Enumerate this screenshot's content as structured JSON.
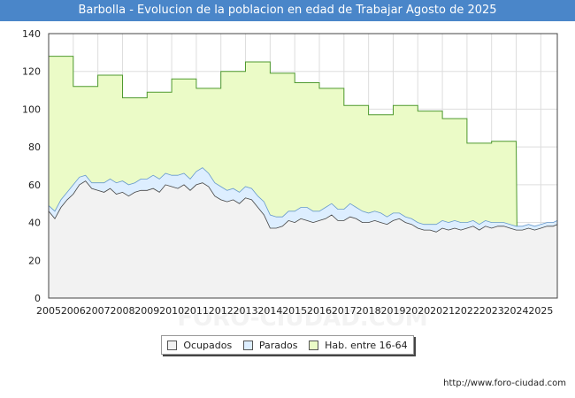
{
  "chart_data": {
    "type": "area",
    "title": "Barbolla - Evolucion de la poblacion en edad de Trabajar Agosto de 2025",
    "xlabel": "",
    "ylabel": "",
    "xlim": [
      2005,
      2025.67
    ],
    "ylim": [
      0,
      140
    ],
    "yticks": [
      0,
      20,
      40,
      60,
      80,
      100,
      120,
      140
    ],
    "xticks": [
      "2005",
      "2006",
      "2007",
      "2008",
      "2009",
      "2010",
      "2011",
      "2012",
      "2013",
      "2014",
      "2015",
      "2016",
      "2017",
      "2018",
      "2019",
      "2020",
      "2021",
      "2022",
      "2023",
      "2024",
      "2025"
    ],
    "grid": true,
    "legend_position": "bottom-center",
    "watermark": "FORO-CIUDAD.COM",
    "source": "http://www.foro-ciudad.com",
    "colors": {
      "ocupados_fill": "#f2f2f2",
      "ocupados_line": "#444444",
      "parados_fill": "#ddeeff",
      "parados_line": "#6699cc",
      "hab_fill": "#ebfbc7",
      "hab_line": "#4f9a2f",
      "title_bar": "#4a86c9"
    },
    "series": [
      {
        "name": "Hab. entre 16-64",
        "x": [
          2005,
          2006,
          2007,
          2008,
          2009,
          2010,
          2011,
          2012,
          2013,
          2014,
          2015,
          2016,
          2017,
          2018,
          2019,
          2020,
          2021,
          2022,
          2023,
          2024
        ],
        "values": [
          128,
          112,
          118,
          106,
          109,
          116,
          111,
          120,
          125,
          119,
          114,
          111,
          102,
          97,
          102,
          99,
          95,
          82,
          83,
          null
        ]
      },
      {
        "name": "Ocupados",
        "x": [
          2005.0,
          2005.25,
          2005.5,
          2005.75,
          2006.0,
          2006.25,
          2006.5,
          2006.75,
          2007.0,
          2007.25,
          2007.5,
          2007.75,
          2008.0,
          2008.25,
          2008.5,
          2008.75,
          2009.0,
          2009.25,
          2009.5,
          2009.75,
          2010.0,
          2010.25,
          2010.5,
          2010.75,
          2011.0,
          2011.25,
          2011.5,
          2011.75,
          2012.0,
          2012.25,
          2012.5,
          2012.75,
          2013.0,
          2013.25,
          2013.5,
          2013.75,
          2014.0,
          2014.25,
          2014.5,
          2014.75,
          2015.0,
          2015.25,
          2015.5,
          2015.75,
          2016.0,
          2016.25,
          2016.5,
          2016.75,
          2017.0,
          2017.25,
          2017.5,
          2017.75,
          2018.0,
          2018.25,
          2018.5,
          2018.75,
          2019.0,
          2019.25,
          2019.5,
          2019.75,
          2020.0,
          2020.25,
          2020.5,
          2020.75,
          2021.0,
          2021.25,
          2021.5,
          2021.75,
          2022.0,
          2022.25,
          2022.5,
          2022.75,
          2023.0,
          2023.25,
          2023.5,
          2023.75,
          2024.0,
          2024.25,
          2024.5,
          2024.75,
          2025.0,
          2025.25,
          2025.5,
          2025.67
        ],
        "values": [
          46,
          42,
          48,
          52,
          55,
          60,
          62,
          58,
          57,
          56,
          58,
          55,
          56,
          54,
          56,
          57,
          57,
          58,
          56,
          60,
          59,
          58,
          60,
          57,
          60,
          61,
          59,
          54,
          52,
          51,
          52,
          50,
          53,
          52,
          48,
          44,
          37,
          37,
          38,
          41,
          40,
          42,
          41,
          40,
          41,
          42,
          44,
          41,
          41,
          43,
          42,
          40,
          40,
          41,
          40,
          39,
          41,
          42,
          40,
          39,
          37,
          36,
          36,
          35,
          37,
          36,
          37,
          36,
          37,
          38,
          36,
          38,
          37,
          38,
          38,
          37,
          36,
          36,
          37,
          36,
          37,
          38,
          38,
          39
        ]
      },
      {
        "name": "Parados",
        "x": [
          2005.0,
          2005.25,
          2005.5,
          2005.75,
          2006.0,
          2006.25,
          2006.5,
          2006.75,
          2007.0,
          2007.25,
          2007.5,
          2007.75,
          2008.0,
          2008.25,
          2008.5,
          2008.75,
          2009.0,
          2009.25,
          2009.5,
          2009.75,
          2010.0,
          2010.25,
          2010.5,
          2010.75,
          2011.0,
          2011.25,
          2011.5,
          2011.75,
          2012.0,
          2012.25,
          2012.5,
          2012.75,
          2013.0,
          2013.25,
          2013.5,
          2013.75,
          2014.0,
          2014.25,
          2014.5,
          2014.75,
          2015.0,
          2015.25,
          2015.5,
          2015.75,
          2016.0,
          2016.25,
          2016.5,
          2016.75,
          2017.0,
          2017.25,
          2017.5,
          2017.75,
          2018.0,
          2018.25,
          2018.5,
          2018.75,
          2019.0,
          2019.25,
          2019.5,
          2019.75,
          2020.0,
          2020.25,
          2020.5,
          2020.75,
          2021.0,
          2021.25,
          2021.5,
          2021.75,
          2022.0,
          2022.25,
          2022.5,
          2022.75,
          2023.0,
          2023.25,
          2023.5,
          2023.75,
          2024.0,
          2024.25,
          2024.5,
          2024.75,
          2025.0,
          2025.25,
          2025.5,
          2025.67
        ],
        "values": [
          3,
          4,
          4,
          4,
          5,
          4,
          3,
          3,
          4,
          5,
          5,
          6,
          6,
          6,
          5,
          6,
          6,
          7,
          7,
          6,
          6,
          7,
          6,
          6,
          7,
          8,
          7,
          7,
          7,
          6,
          6,
          6,
          6,
          6,
          6,
          7,
          7,
          6,
          5,
          5,
          6,
          6,
          7,
          6,
          5,
          6,
          6,
          6,
          6,
          7,
          6,
          6,
          5,
          5,
          5,
          4,
          4,
          3,
          3,
          3,
          3,
          3,
          3,
          4,
          4,
          4,
          4,
          4,
          3,
          3,
          3,
          3,
          3,
          2,
          2,
          2,
          2,
          2,
          2,
          2,
          2,
          2,
          2,
          2
        ]
      }
    ]
  }
}
